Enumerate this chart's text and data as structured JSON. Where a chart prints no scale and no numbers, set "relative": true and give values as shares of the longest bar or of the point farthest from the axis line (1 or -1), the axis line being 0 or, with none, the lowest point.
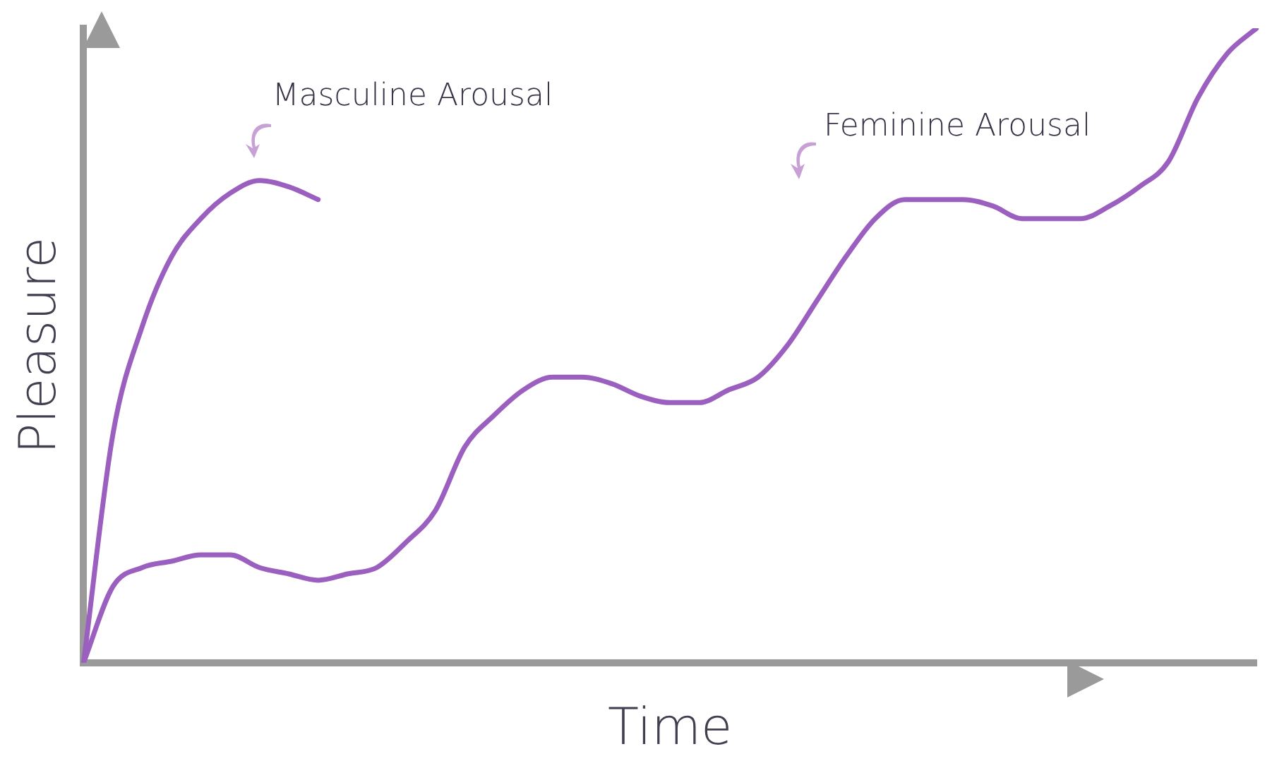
{
  "chart_data": {
    "type": "line",
    "relative": true,
    "xlabel": "Time",
    "ylabel": "Pleasure",
    "legend": false,
    "grid": false,
    "marker": "none",
    "line_style": "solid",
    "categories": [
      null,
      null,
      null,
      null,
      null,
      null,
      null,
      null,
      null,
      null,
      null,
      null,
      null,
      null,
      null,
      null,
      null,
      null,
      null,
      null,
      null,
      null,
      null,
      null,
      null,
      null,
      null,
      null,
      null,
      null,
      null,
      null,
      null,
      null,
      null,
      null,
      null,
      null,
      null,
      null,
      null
    ],
    "series": [
      {
        "name": "Masculine Arousal",
        "color": "#9b5fc0",
        "values": [
          0,
          0.36,
          0.53,
          0.64,
          0.7,
          0.74,
          0.76,
          0.75,
          0.73,
          null,
          null,
          null,
          null,
          null,
          null,
          null,
          null,
          null,
          null,
          null,
          null,
          null,
          null,
          null,
          null,
          null,
          null,
          null,
          null,
          null,
          null,
          null,
          null,
          null,
          null,
          null,
          null,
          null,
          null,
          null,
          null
        ]
      },
      {
        "name": "Feminine Arousal",
        "color": "#9b5fc0",
        "values": [
          0,
          0.12,
          0.15,
          0.16,
          0.17,
          0.17,
          0.15,
          0.14,
          0.13,
          0.14,
          0.15,
          0.19,
          0.24,
          0.34,
          0.39,
          0.43,
          0.45,
          0.45,
          0.44,
          0.42,
          0.41,
          0.41,
          0.43,
          0.45,
          0.5,
          0.57,
          0.64,
          0.7,
          0.73,
          0.73,
          0.73,
          0.72,
          0.7,
          0.7,
          0.7,
          0.72,
          0.75,
          0.79,
          0.89,
          0.96,
          1
        ]
      }
    ]
  }
}
